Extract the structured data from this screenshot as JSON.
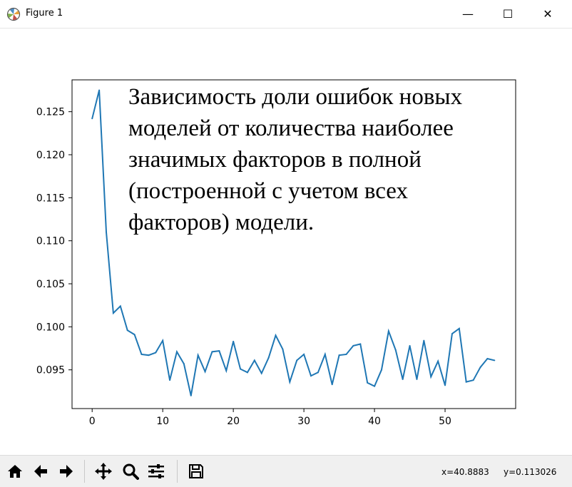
{
  "window": {
    "title": "Figure 1",
    "minimize_glyph": "—",
    "maximize_glyph": "☐",
    "close_glyph": "✕"
  },
  "toolbar": {
    "buttons": [
      "home-icon",
      "back-arrow-icon",
      "forward-arrow-icon",
      "pan-icon",
      "zoom-icon",
      "subplots-config-icon",
      "save-icon"
    ],
    "coords_x": "x=40.8883",
    "coords_y": "y=0.113026"
  },
  "colors": {
    "line": "#1f77b4",
    "axes": "#000000"
  },
  "chart_data": {
    "type": "line",
    "title": "",
    "annotation_lines": [
      "Зависимость доли ошибок новых",
      "моделей от количества наиболее",
      "значимых факторов в полной",
      "(построенной с учетом всех",
      "факторов) модели."
    ],
    "xlabel": "",
    "ylabel": "",
    "xlim": [
      -2.85,
      60.0
    ],
    "ylim": [
      0.0905,
      0.1287
    ],
    "xticks": [
      0,
      10,
      20,
      30,
      40,
      50
    ],
    "xtick_labels": [
      "0",
      "10",
      "20",
      "30",
      "40",
      "50"
    ],
    "yticks": [
      0.095,
      0.1,
      0.105,
      0.11,
      0.115,
      0.12,
      0.125
    ],
    "ytick_labels": [
      "0.095",
      "0.100",
      "0.105",
      "0.110",
      "0.115",
      "0.120",
      "0.125"
    ],
    "grid": false,
    "x": [
      0,
      1,
      2,
      3,
      4,
      5,
      6,
      7,
      8,
      9,
      10,
      11,
      12,
      13,
      14,
      15,
      16,
      17,
      18,
      19,
      20,
      21,
      22,
      23,
      24,
      25,
      26,
      27,
      28,
      29,
      30,
      31,
      32,
      33,
      34,
      35,
      36,
      37,
      38,
      39,
      40,
      41,
      42,
      43,
      44,
      45,
      46,
      47,
      48,
      49,
      50,
      51,
      52,
      53,
      54,
      55,
      56,
      57
    ],
    "y": [
      0.1242,
      0.1275,
      0.111,
      0.1016,
      0.1024,
      0.0996,
      0.0991,
      0.0968,
      0.0967,
      0.097,
      0.0984,
      0.0938,
      0.0971,
      0.0957,
      0.092,
      0.0967,
      0.0948,
      0.0971,
      0.0972,
      0.0949,
      0.0983,
      0.0951,
      0.0947,
      0.0961,
      0.0946,
      0.0964,
      0.099,
      0.0974,
      0.0936,
      0.0961,
      0.0968,
      0.0943,
      0.0947,
      0.0968,
      0.0933,
      0.0967,
      0.0968,
      0.0978,
      0.098,
      0.0935,
      0.0931,
      0.095,
      0.0995,
      0.0973,
      0.0939,
      0.0978,
      0.0939,
      0.0984,
      0.0942,
      0.096,
      0.0932,
      0.0992,
      0.0998,
      0.0936,
      0.0938,
      0.0953,
      0.0963,
      0.0961
    ]
  }
}
